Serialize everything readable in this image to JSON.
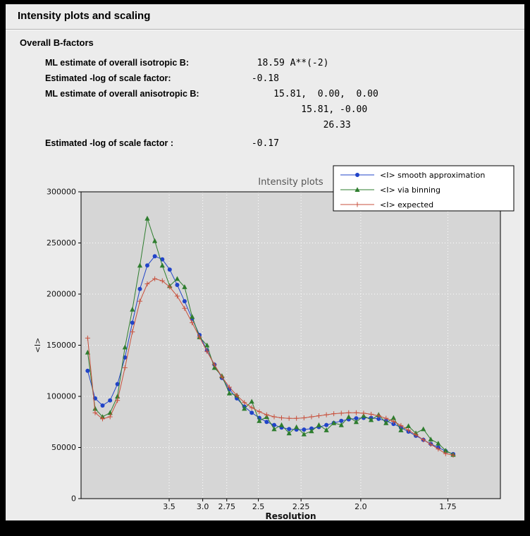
{
  "window": {
    "title": "Intensity plots and scaling"
  },
  "bfactors": {
    "section_title": "Overall B-factors",
    "rows": [
      {
        "label": "ML estimate of overall isotropic B:",
        "value": "  18.59 A**(-2)"
      },
      {
        "label": "Estimated -log of scale factor:",
        "value": " -0.18"
      },
      {
        "label": "ML estimate of overall anisotropic B:",
        "value": "     15.81,  0.00,  0.00"
      },
      {
        "label": "",
        "value": "          15.81, -0.00"
      },
      {
        "label": "",
        "value": "              26.33"
      },
      {
        "label": "Estimated -log of scale factor :",
        "value": " -0.17"
      }
    ]
  },
  "chart_data": {
    "type": "line",
    "title": "Intensity plots",
    "xlabel": "Resolution",
    "ylabel": "<I>",
    "grid": true,
    "legend_position": "top-right",
    "colors": {
      "plot_bg": "#d6d6d6",
      "grid": "#ffffff",
      "title": "#555555"
    },
    "x_axis": {
      "scale": "inverse_d_squared",
      "s_min": 0.0042,
      "s_max": 0.3727,
      "ticks_d": [
        3.5,
        3.0,
        2.75,
        2.5,
        2.25,
        2.0,
        1.75
      ],
      "tick_labels": [
        "3.5",
        "3.0",
        "2.75",
        "2.5",
        "2.25",
        "2.0",
        "1.75"
      ]
    },
    "y_axis": {
      "min": 0,
      "max": 300000,
      "ticks": [
        0,
        50000,
        100000,
        150000,
        200000,
        250000,
        300000
      ]
    },
    "x_s": [
      0.01,
      0.0166,
      0.0231,
      0.0297,
      0.0362,
      0.0428,
      0.0493,
      0.0559,
      0.0624,
      0.069,
      0.0756,
      0.0821,
      0.0887,
      0.0952,
      0.1018,
      0.1083,
      0.1149,
      0.1214,
      0.128,
      0.1345,
      0.1411,
      0.1477,
      0.1542,
      0.1608,
      0.1673,
      0.1739,
      0.1804,
      0.187,
      0.1935,
      0.2001,
      0.2067,
      0.2132,
      0.2198,
      0.2263,
      0.2329,
      0.2394,
      0.246,
      0.2525,
      0.2591,
      0.2657,
      0.2722,
      0.2788,
      0.2853,
      0.2919,
      0.2984,
      0.305,
      0.3115,
      0.3181,
      0.3246,
      0.3312
    ],
    "series": [
      {
        "name": "<I> smooth approximation",
        "color": "#2144c8",
        "marker": "circle",
        "values": [
          125000,
          98000,
          91000,
          96000,
          112000,
          138000,
          172000,
          205000,
          228000,
          237000,
          234000,
          224000,
          209000,
          193000,
          176000,
          160000,
          145000,
          131000,
          118000,
          107000,
          98000,
          90000,
          84000,
          79000,
          75000,
          72000,
          69500,
          68000,
          67500,
          67500,
          68500,
          70000,
          72000,
          74000,
          76000,
          77500,
          78500,
          79000,
          79000,
          78000,
          76000,
          73000,
          69500,
          65500,
          61500,
          57500,
          53500,
          50000,
          46500,
          43500
        ]
      },
      {
        "name": "<I> via binning",
        "color": "#2e7d2e",
        "marker": "triangle",
        "values": [
          143000,
          88000,
          80000,
          84000,
          100000,
          148000,
          185000,
          228000,
          274000,
          252000,
          228000,
          208000,
          215000,
          207000,
          178000,
          158000,
          150000,
          128000,
          120000,
          103000,
          101000,
          88000,
          95000,
          76000,
          80000,
          68000,
          72000,
          64000,
          70000,
          63000,
          66000,
          72000,
          67000,
          74000,
          72000,
          80000,
          75000,
          81000,
          77000,
          82000,
          74000,
          79000,
          67000,
          71000,
          64000,
          68000,
          58000,
          54000,
          47000,
          43000
        ]
      },
      {
        "name": "<I> expected",
        "color": "#c8503c",
        "marker": "plus",
        "values": [
          157000,
          84000,
          78000,
          80000,
          96000,
          128000,
          163000,
          193000,
          210000,
          215000,
          213000,
          207000,
          198000,
          186000,
          172000,
          158000,
          144000,
          131000,
          119000,
          109000,
          101000,
          94000,
          89000,
          85000,
          82000,
          80000,
          79000,
          78500,
          78500,
          79000,
          80000,
          81000,
          82000,
          83000,
          83500,
          84000,
          84000,
          83500,
          82500,
          81000,
          78500,
          75500,
          71500,
          67000,
          62500,
          57500,
          53000,
          48500,
          44000,
          42500
        ]
      }
    ]
  }
}
